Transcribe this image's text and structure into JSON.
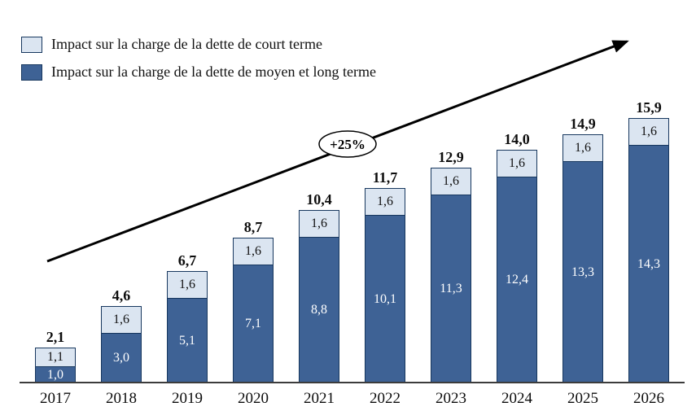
{
  "legend": {
    "items": [
      {
        "label": "Impact sur la charge de la dette de court terme",
        "color": "#dbe5f1"
      },
      {
        "label": "Impact sur la charge de la dette de moyen et long terme",
        "color": "#3e6295"
      }
    ]
  },
  "annotation": {
    "growth_label": "+25%"
  },
  "colors": {
    "segment_border": "#17375e",
    "short_term_fill": "#dbe5f1",
    "long_term_fill": "#3e6295",
    "arrow": "#000000"
  },
  "chart_data": {
    "type": "bar",
    "stacked": true,
    "grid": false,
    "legend_position": "top-left",
    "title": "",
    "xlabel": "",
    "ylabel": "",
    "ylim": [
      0,
      16.5
    ],
    "categories": [
      "2017",
      "2018",
      "2019",
      "2020",
      "2021",
      "2022",
      "2023",
      "2024",
      "2025",
      "2026"
    ],
    "series": [
      {
        "name": "Impact sur la charge de la dette de moyen et long terme",
        "color": "#3e6295",
        "values": [
          1.0,
          3.0,
          5.1,
          7.1,
          8.8,
          10.1,
          11.3,
          12.4,
          13.3,
          14.3
        ],
        "labels": [
          "1,0",
          "3,0",
          "5,1",
          "7,1",
          "8,8",
          "10,1",
          "11,3",
          "12,4",
          "13,3",
          "14,3"
        ]
      },
      {
        "name": "Impact sur la charge de la dette de court terme",
        "color": "#dbe5f1",
        "values": [
          1.1,
          1.6,
          1.6,
          1.6,
          1.6,
          1.6,
          1.6,
          1.6,
          1.6,
          1.6
        ],
        "labels": [
          "1,1",
          "1,6",
          "1,6",
          "1,6",
          "1,6",
          "1,6",
          "1,6",
          "1,6",
          "1,6",
          "1,6"
        ]
      }
    ],
    "totals": [
      "2,1",
      "4,6",
      "6,7",
      "8,7",
      "10,4",
      "11,7",
      "12,9",
      "14,0",
      "14,9",
      "15,9"
    ],
    "annotations": [
      {
        "text": "+25%",
        "shape": "ellipse",
        "on": "trend-arrow"
      }
    ]
  }
}
